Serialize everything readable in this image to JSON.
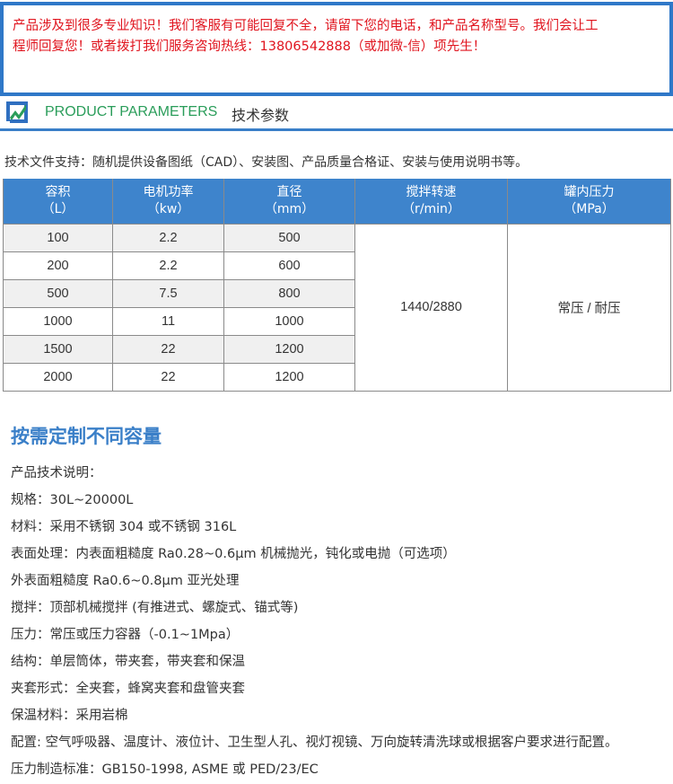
{
  "notice": {
    "line1": "产品涉及到很多专业知识！我们客服有可能回复不全，请留下您的电话，和产品名称型号。我们会让工",
    "line2": "程师回复您！或者拨打我们服务咨询热线：13806542888（或加微-信）项先生！"
  },
  "section_header": {
    "icon": "product-parameters-logo-icon",
    "title_en": "PRODUCT PARAMETERS",
    "title_cn": "技术参数"
  },
  "tech_support": "技术文件支持：随机提供设备图纸（CAD）、安装图、产品质量合格证、安装与使用说明书等。",
  "table": {
    "headers": [
      {
        "name": "容积",
        "unit": "（L）"
      },
      {
        "name": "电机功率",
        "unit": "（kw）"
      },
      {
        "name": "直径",
        "unit": "（mm）"
      },
      {
        "name": "搅拌转速",
        "unit": "（r/min）"
      },
      {
        "name": "罐内压力",
        "unit": "（MPa）"
      }
    ],
    "rows": [
      [
        "100",
        "2.2",
        "500"
      ],
      [
        "200",
        "2.2",
        "600"
      ],
      [
        "500",
        "7.5",
        "800"
      ],
      [
        "1000",
        "11",
        "1000"
      ],
      [
        "1500",
        "22",
        "1200"
      ],
      [
        "2000",
        "22",
        "1200"
      ]
    ],
    "speed": "1440/2880",
    "pressure": "常压 / 耐压"
  },
  "custom_title": "按需定制不同容量",
  "specs": [
    "产品技术说明：",
    "规格：30L~20000L",
    "材料：采用不锈钢 304 或不锈钢 316L",
    "表面处理：内表面粗糙度 Ra0.28~0.6μm 机械抛光，钝化或电抛（可选项）",
    "外表面粗糙度 Ra0.6~0.8μm 亚光处理",
    "搅拌：顶部机械搅拌 (有推进式、螺旋式、锚式等)",
    "压力：常压或压力容器（-0.1~1Mpa）",
    "结构：单层筒体，带夹套，带夹套和保温",
    "夹套形式：全夹套，蜂窝夹套和盘管夹套",
    "保温材料：采用岩棉",
    "配置: 空气呼吸器、温度计、液位计、卫生型人孔、视灯视镜、万向旋转清洗球或根据客户要求进行配置。",
    "压力制造标准：GB150-1998, ASME 或 PED/23/EC"
  ],
  "colors": {
    "accent": "#3e84cc",
    "notice_text": "#e0141e",
    "en_title": "#2a9d5a"
  }
}
